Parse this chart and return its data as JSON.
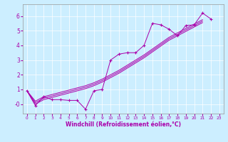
{
  "xlabel": "Windchill (Refroidissement éolien,°C)",
  "bg_color": "#cceeff",
  "line_color": "#aa00aa",
  "x_data": [
    0,
    1,
    2,
    3,
    4,
    5,
    6,
    7,
    8,
    9,
    10,
    11,
    12,
    13,
    14,
    15,
    16,
    17,
    18,
    19,
    20,
    21,
    22,
    23
  ],
  "y_zigzag": [
    0.9,
    -0.1,
    0.5,
    0.3,
    0.3,
    0.25,
    0.25,
    -0.35,
    0.9,
    1.0,
    3.0,
    3.4,
    3.5,
    3.5,
    4.0,
    5.5,
    5.4,
    5.1,
    4.65,
    5.35,
    5.4,
    6.2,
    5.8,
    null
  ],
  "y_line1": [
    0.9,
    0.1,
    0.4,
    0.55,
    0.7,
    0.85,
    1.0,
    1.15,
    1.35,
    1.6,
    1.9,
    2.2,
    2.55,
    2.9,
    3.25,
    3.65,
    4.05,
    4.45,
    4.75,
    5.05,
    5.35,
    5.65,
    null,
    null
  ],
  "y_line2": [
    0.9,
    0.0,
    0.3,
    0.45,
    0.6,
    0.75,
    0.9,
    1.05,
    1.25,
    1.5,
    1.8,
    2.1,
    2.45,
    2.8,
    3.15,
    3.55,
    3.95,
    4.35,
    4.65,
    4.95,
    5.25,
    5.55,
    null,
    null
  ],
  "y_line3": [
    0.9,
    0.2,
    0.5,
    0.65,
    0.8,
    0.95,
    1.1,
    1.25,
    1.45,
    1.7,
    2.0,
    2.3,
    2.65,
    3.0,
    3.35,
    3.75,
    4.15,
    4.55,
    4.85,
    5.15,
    5.45,
    5.75,
    null,
    null
  ],
  "ylim": [
    -0.65,
    6.8
  ],
  "xlim": [
    -0.5,
    23.5
  ],
  "yticks": [
    0,
    1,
    2,
    3,
    4,
    5,
    6
  ],
  "ytick_labels": [
    "-0",
    "1",
    "2",
    "3",
    "4",
    "5",
    "6"
  ],
  "xticks": [
    0,
    1,
    2,
    3,
    4,
    5,
    6,
    7,
    8,
    9,
    10,
    11,
    12,
    13,
    14,
    15,
    16,
    17,
    18,
    19,
    20,
    21,
    22,
    23
  ]
}
